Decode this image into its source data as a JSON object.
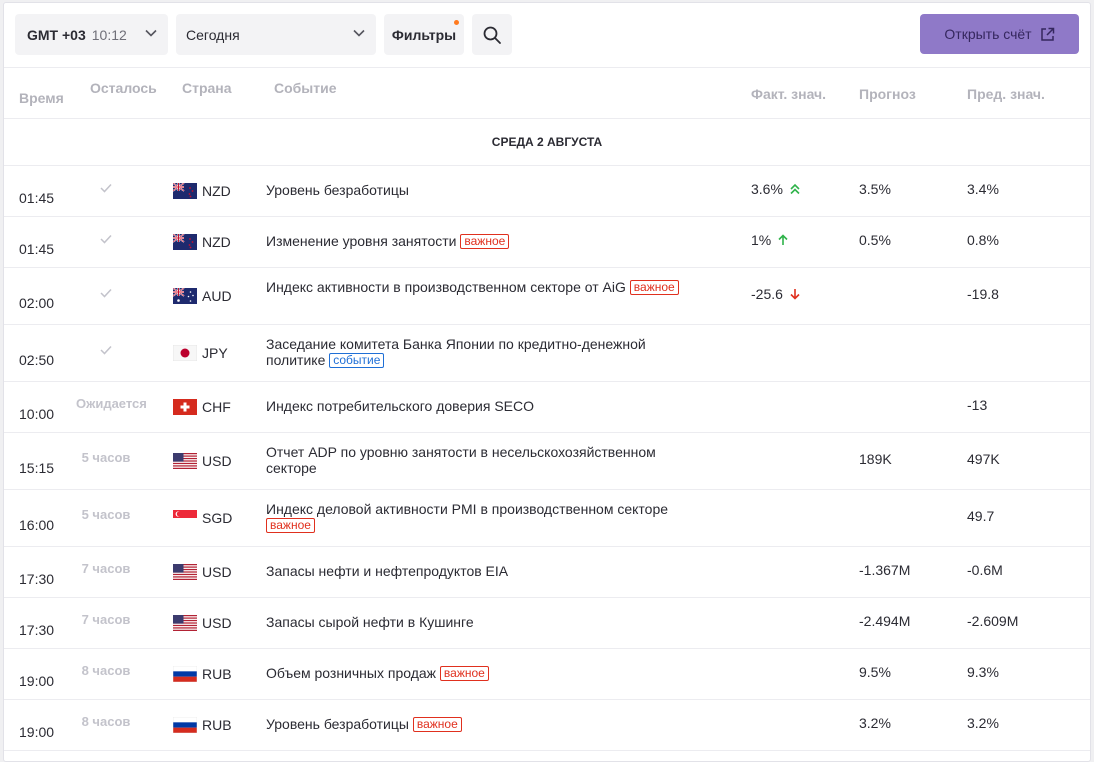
{
  "toolbar": {
    "timezone_label": "GMT +03",
    "timezone_time": "10:12",
    "day_select": "Сегодня",
    "filters_label": "Фильтры",
    "open_account_label": "Открыть счёт"
  },
  "columns": {
    "time": "Время",
    "remaining": "Осталось",
    "country": "Страна",
    "event": "Событие",
    "actual": "Факт. знач.",
    "forecast": "Прогноз",
    "previous": "Пред. знач."
  },
  "date_band": "СРЕДА 2 АВГУСТА",
  "colors": {
    "accent_button": "#8f79c8",
    "important": "#e0301e",
    "event_badge": "#1f6fd6",
    "up": "#2fb34a",
    "down": "#e0301e"
  },
  "rows": [
    {
      "time": "01:45",
      "remaining": "",
      "done": true,
      "currency": "NZD",
      "flag": "nz-flag-icon",
      "event": "Уровень безработицы",
      "badge": "",
      "actual": "3.6%",
      "trend": "up-double",
      "forecast": "3.5%",
      "previous": "3.4%"
    },
    {
      "time": "01:45",
      "remaining": "",
      "done": true,
      "currency": "NZD",
      "flag": "nz-flag-icon",
      "event": "Изменение уровня занятости",
      "badge": "важное",
      "actual": "1%",
      "trend": "up",
      "forecast": "0.5%",
      "previous": "0.8%"
    },
    {
      "time": "02:00",
      "remaining": "",
      "done": true,
      "currency": "AUD",
      "flag": "au-flag-icon",
      "event": "Индекс активности в производственном секторе от AiG",
      "badge": "важное",
      "actual": "-25.6",
      "trend": "down",
      "forecast": "",
      "previous": "-19.8"
    },
    {
      "time": "02:50",
      "remaining": "",
      "done": true,
      "currency": "JPY",
      "flag": "jp-flag-icon",
      "event": "Заседание комитета Банка Японии по кредитно-денежной политике",
      "badge": "событие",
      "actual": "",
      "trend": "",
      "forecast": "",
      "previous": ""
    },
    {
      "time": "10:00",
      "remaining": "Ожидается",
      "done": false,
      "currency": "CHF",
      "flag": "ch-flag-icon",
      "event": "Индекс потребительского доверия SECO",
      "badge": "",
      "actual": "",
      "trend": "",
      "forecast": "",
      "previous": "-13"
    },
    {
      "time": "15:15",
      "remaining": "5 часов",
      "done": false,
      "currency": "USD",
      "flag": "us-flag-icon",
      "event": "Отчет ADP по уровню занятости в несельскохозяйственном секторе",
      "badge": "",
      "actual": "",
      "trend": "",
      "forecast": "189K",
      "previous": "497K"
    },
    {
      "time": "16:00",
      "remaining": "5 часов",
      "done": false,
      "currency": "SGD",
      "flag": "sg-flag-icon",
      "event": "Индекс деловой активности PMI в производственном секторе",
      "badge": "важное",
      "actual": "",
      "trend": "",
      "forecast": "",
      "previous": "49.7"
    },
    {
      "time": "17:30",
      "remaining": "7 часов",
      "done": false,
      "currency": "USD",
      "flag": "us-flag-icon",
      "event": "Запасы нефти и нефтепродуктов EIA",
      "badge": "",
      "actual": "",
      "trend": "",
      "forecast": "-1.367M",
      "previous": "-0.6M"
    },
    {
      "time": "17:30",
      "remaining": "7 часов",
      "done": false,
      "currency": "USD",
      "flag": "us-flag-icon",
      "event": "Запасы сырой нефти в Кушинге",
      "badge": "",
      "actual": "",
      "trend": "",
      "forecast": "-2.494M",
      "previous": "-2.609M"
    },
    {
      "time": "19:00",
      "remaining": "8 часов",
      "done": false,
      "currency": "RUB",
      "flag": "ru-flag-icon",
      "event": "Объем розничных продаж",
      "badge": "важное",
      "actual": "",
      "trend": "",
      "forecast": "9.5%",
      "previous": "9.3%"
    },
    {
      "time": "19:00",
      "remaining": "8 часов",
      "done": false,
      "currency": "RUB",
      "flag": "ru-flag-icon",
      "event": "Уровень безработицы",
      "badge": "важное",
      "actual": "",
      "trend": "",
      "forecast": "3.2%",
      "previous": "3.2%"
    }
  ]
}
